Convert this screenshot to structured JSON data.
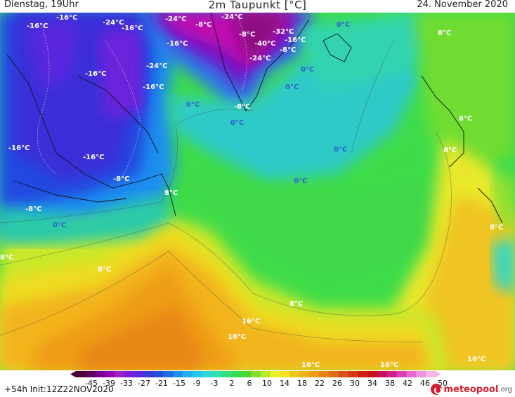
{
  "header": {
    "left": "Dienstag, 19Uhr",
    "title": "2m Taupunkt [°C]",
    "date": "24. November 2020"
  },
  "footer": {
    "run_info": "+54h Init:12Z22NOV2020",
    "logo_main": "meteopool",
    "logo_suffix": ".org"
  },
  "colorbar": {
    "ticks": [
      "-45",
      "-39",
      "-33",
      "-27",
      "-21",
      "-15",
      "-9",
      "-3",
      "2",
      "6",
      "10",
      "14",
      "18",
      "22",
      "26",
      "30",
      "34",
      "38",
      "42",
      "46",
      "50"
    ],
    "colors": [
      "#4b0033",
      "#5e0060",
      "#7a0090",
      "#9a00b4",
      "#a020c8",
      "#7c1ed8",
      "#5a28e0",
      "#3b3cd8",
      "#2450e0",
      "#1e6ee8",
      "#1c8ef0",
      "#20aef4",
      "#26c8f0",
      "#2ed8d8",
      "#2fe0b0",
      "#32e080",
      "#36dc50",
      "#48d830",
      "#7ee02a",
      "#b8ec28",
      "#e8f028",
      "#f4e020",
      "#f0c81c",
      "#eeb21a",
      "#ec9c18",
      "#e88416",
      "#e26c14",
      "#dc5012",
      "#d63810",
      "#d02010",
      "#c81018",
      "#c8105a",
      "#d0208c",
      "#dc40b8",
      "#e668d0",
      "#f090e0",
      "#f8b8ec"
    ]
  },
  "map_labels": [
    {
      "text": "-16°C",
      "color": "#ffffff"
    },
    {
      "text": "-16°C",
      "color": "#ffffff"
    },
    {
      "text": "-24°C",
      "color": "#ffffff"
    },
    {
      "text": "-16°C",
      "color": "#ffffff"
    },
    {
      "text": "-24°C",
      "color": "#ffffff"
    },
    {
      "text": "-8°C",
      "color": "#ffffff"
    },
    {
      "text": "-24°C",
      "color": "#ffffff"
    },
    {
      "text": "-32°C",
      "color": "#ffffff"
    },
    {
      "text": "0°C",
      "color": "#3060d0"
    },
    {
      "text": "-8°C",
      "color": "#ffffff"
    },
    {
      "text": "-16°C",
      "color": "#ffffff"
    },
    {
      "text": "-40°C",
      "color": "#ffffff"
    },
    {
      "text": "-16°C",
      "color": "#ffffff"
    },
    {
      "text": "-8°C",
      "color": "#ffffff"
    },
    {
      "text": "8°C",
      "color": "#ffffff"
    },
    {
      "text": "-24°C",
      "color": "#ffffff"
    },
    {
      "text": "-24°C",
      "color": "#ffffff"
    },
    {
      "text": "-16°C",
      "color": "#ffffff"
    },
    {
      "text": "0°C",
      "color": "#3060d0"
    },
    {
      "text": "-16°C",
      "color": "#ffffff"
    },
    {
      "text": "0°C",
      "color": "#3060d0"
    },
    {
      "text": "0°C",
      "color": "#3060d0"
    },
    {
      "text": "-8°C",
      "color": "#ffffff"
    },
    {
      "text": "0°C",
      "color": "#3060d0"
    },
    {
      "text": "8°C",
      "color": "#ffffff"
    },
    {
      "text": "-16°C",
      "color": "#ffffff"
    },
    {
      "text": "-16°C",
      "color": "#ffffff"
    },
    {
      "text": "0°C",
      "color": "#3060d0"
    },
    {
      "text": "8°C",
      "color": "#ffffff"
    },
    {
      "text": "-8°C",
      "color": "#ffffff"
    },
    {
      "text": "0°C",
      "color": "#3060d0"
    },
    {
      "text": "8°C",
      "color": "#ffffff"
    },
    {
      "text": "-8°C",
      "color": "#ffffff"
    },
    {
      "text": "0°C",
      "color": "#3060d0"
    },
    {
      "text": "8°C",
      "color": "#ffffff"
    },
    {
      "text": "8°C",
      "color": "#ffffff"
    },
    {
      "text": "8°C",
      "color": "#ffffff"
    },
    {
      "text": "8°C",
      "color": "#ffffff"
    },
    {
      "text": "16°C",
      "color": "#ffffff"
    },
    {
      "text": "16°C",
      "color": "#ffffff"
    },
    {
      "text": "16°C",
      "color": "#ffffff"
    },
    {
      "text": "16°C",
      "color": "#ffffff"
    },
    {
      "text": "16°C",
      "color": "#ffffff"
    }
  ]
}
